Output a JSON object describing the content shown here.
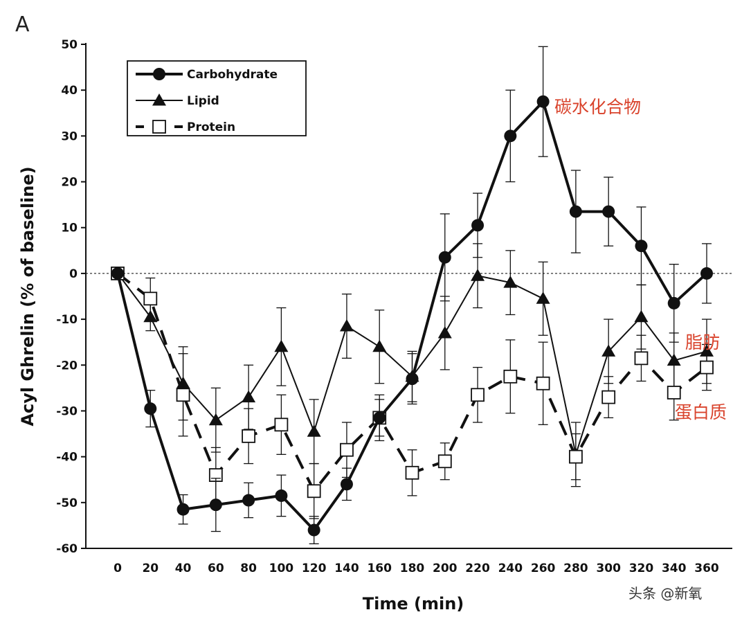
{
  "chart_data": {
    "type": "line",
    "panel_label": "A",
    "xlabel": "Time (min)",
    "ylabel": "Acyl Ghrelin (% of baseline)",
    "xlim": [
      0,
      360
    ],
    "ylim": [
      -60,
      50
    ],
    "xticks": [
      0,
      20,
      40,
      60,
      80,
      100,
      120,
      140,
      160,
      180,
      200,
      220,
      240,
      260,
      280,
      300,
      320,
      340,
      360
    ],
    "yticks": [
      50,
      40,
      30,
      20,
      10,
      0,
      -10,
      -20,
      -30,
      -40,
      -50,
      -60
    ],
    "reference_line": 0,
    "legend_position": "top-left",
    "x": [
      0,
      20,
      40,
      60,
      80,
      100,
      120,
      140,
      160,
      180,
      200,
      220,
      240,
      260,
      280,
      300,
      320,
      340,
      360
    ],
    "series": [
      {
        "name": "Carbohydrate",
        "marker": "filled-circle",
        "line": "thick-solid",
        "values": [
          0,
          -29.5,
          -51.5,
          -50.5,
          -49.5,
          -48.5,
          -56,
          -46,
          -31.5,
          -23,
          3.5,
          10.5,
          30,
          37.5,
          13.5,
          13.5,
          6,
          -6.5,
          0
        ],
        "err": [
          0,
          4,
          3.2,
          5.8,
          3.8,
          4.5,
          3,
          3.5,
          4,
          5.5,
          9.5,
          7,
          10,
          12,
          9,
          7.5,
          8.5,
          8.5,
          6.5
        ]
      },
      {
        "name": "Lipid",
        "marker": "filled-triangle",
        "line": "thin-solid",
        "values": [
          0,
          -9.5,
          -24,
          -32,
          -27,
          -16,
          -34.5,
          -11.5,
          -16,
          -22.5,
          -13,
          -0.5,
          -2,
          -5.5,
          -39.5,
          -17,
          -9.5,
          -19,
          -17
        ],
        "err": [
          0,
          3,
          8,
          7,
          7,
          8.5,
          7,
          7,
          8,
          5.5,
          8,
          7,
          7,
          8,
          7,
          7,
          7,
          6,
          7
        ]
      },
      {
        "name": "Protein",
        "marker": "open-square",
        "line": "thick-dashed",
        "values": [
          0,
          -5.5,
          -26.5,
          -44,
          -35.5,
          -33,
          -47.5,
          -38.5,
          -31.5,
          -43.5,
          -41,
          -26.5,
          -22.5,
          -24,
          -40,
          -27,
          -18.5,
          -26,
          -20.5
        ],
        "err": [
          0,
          4.5,
          9,
          6,
          6,
          6.5,
          6,
          6,
          5,
          5,
          4,
          6,
          8,
          9,
          5,
          4.5,
          5,
          6,
          5
        ]
      }
    ],
    "annotations": [
      {
        "text": "碳水化合物",
        "series": "Carbohydrate"
      },
      {
        "text": "脂肪",
        "series": "Lipid"
      },
      {
        "text": "蛋白质",
        "series": "Protein"
      }
    ]
  },
  "watermark": "头条 @新氧"
}
